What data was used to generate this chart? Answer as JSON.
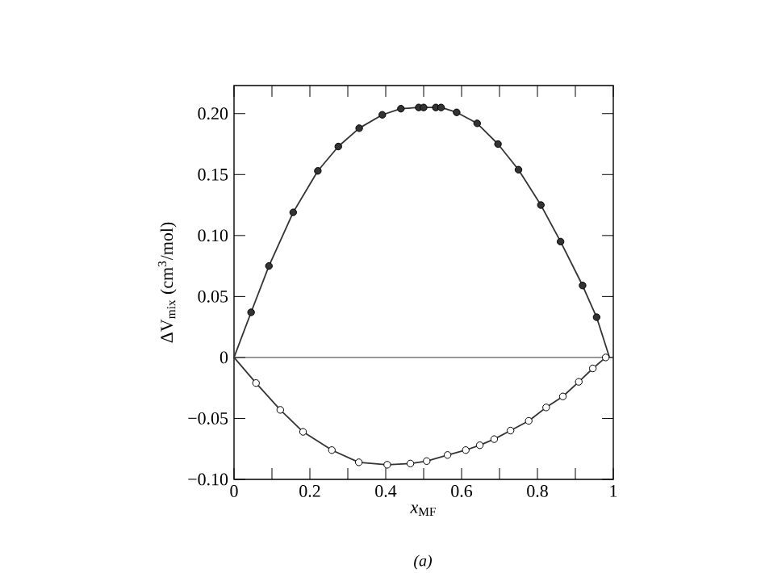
{
  "chart_data": {
    "type": "scatter",
    "xlabel": "*x*$_{MF}$",
    "ylabel": "ΔV$_{mix}$ (cm$^{3}$/mol)",
    "marker": "circle",
    "annotations": [
      "*(a)*"
    ],
    "xlim": [
      0,
      1
    ],
    "ylim": [
      -0.1,
      0.223
    ],
    "xticks": [
      0,
      {
        "value": 0.1,
        "label": null
      },
      0.2,
      {
        "value": 0.3,
        "label": null
      },
      0.4,
      {
        "value": 0.5,
        "label": null
      },
      0.6,
      {
        "value": 0.7,
        "label": null
      },
      0.8,
      {
        "value": 0.9,
        "label": null
      },
      1
    ],
    "yticks": [
      {
        "value": -0.1,
        "label": "−0.10"
      },
      {
        "value": -0.05,
        "label": "−0.05"
      },
      0,
      0.05,
      {
        "value": 0.1,
        "label": "0.10"
      },
      0.15,
      {
        "value": 0.2,
        "label": "0.20"
      }
    ],
    "ref_lines": [
      {
        "axis": "y",
        "value": 0,
        "color": "#333333"
      }
    ],
    "series": [
      {
        "type": "line",
        "marker": "none",
        "color": "#333333",
        "x": [
          0,
          0.045,
          0.092,
          0.156,
          0.221,
          0.275,
          0.33,
          0.391,
          0.44,
          0.487,
          0.5,
          0.532,
          0.546,
          0.587,
          0.641,
          0.696,
          0.75,
          0.809,
          0.861,
          0.919,
          0.956,
          0.99
        ],
        "values": [
          0,
          0.037,
          0.075,
          0.119,
          0.153,
          0.173,
          0.188,
          0.199,
          0.204,
          0.205,
          0.205,
          0.205,
          0.205,
          0.201,
          0.192,
          0.175,
          0.154,
          0.125,
          0.095,
          0.059,
          0.033,
          0
        ]
      },
      {
        "type": "line",
        "marker": "none",
        "color": "#333333",
        "x": [
          0,
          0.058,
          0.122,
          0.182,
          0.258,
          0.329,
          0.404,
          0.465,
          0.508,
          0.563,
          0.611,
          0.648,
          0.686,
          0.729,
          0.777,
          0.823,
          0.867,
          0.909,
          0.946,
          0.98
        ],
        "values": [
          0,
          -0.021,
          -0.043,
          -0.061,
          -0.076,
          -0.086,
          -0.088,
          -0.087,
          -0.085,
          -0.08,
          -0.076,
          -0.072,
          -0.067,
          -0.06,
          -0.052,
          -0.041,
          -0.032,
          -0.02,
          -0.009,
          0
        ]
      },
      {
        "color": "#333333",
        "x": [
          0.045,
          0.092,
          0.156,
          0.221,
          0.275,
          0.33,
          0.391,
          0.44,
          0.487,
          0.5,
          0.532,
          0.546,
          0.587,
          0.641,
          0.696,
          0.75,
          0.809,
          0.861,
          0.919,
          0.956
        ],
        "values": [
          0.037,
          0.075,
          0.119,
          0.153,
          0.173,
          0.188,
          0.199,
          0.204,
          0.205,
          0.205,
          0.205,
          0.205,
          0.201,
          0.192,
          0.175,
          0.154,
          0.125,
          0.095,
          0.059,
          0.033
        ]
      },
      {
        "color": "#ffffff",
        "x": [
          0.058,
          0.122,
          0.182,
          0.258,
          0.329,
          0.404,
          0.465,
          0.508,
          0.563,
          0.611,
          0.648,
          0.686,
          0.729,
          0.777,
          0.823,
          0.867,
          0.909,
          0.946,
          0.98
        ],
        "values": [
          -0.021,
          -0.043,
          -0.061,
          -0.076,
          -0.086,
          -0.088,
          -0.087,
          -0.085,
          -0.08,
          -0.076,
          -0.072,
          -0.067,
          -0.06,
          -0.052,
          -0.041,
          -0.032,
          -0.02,
          -0.009,
          0
        ]
      }
    ]
  }
}
